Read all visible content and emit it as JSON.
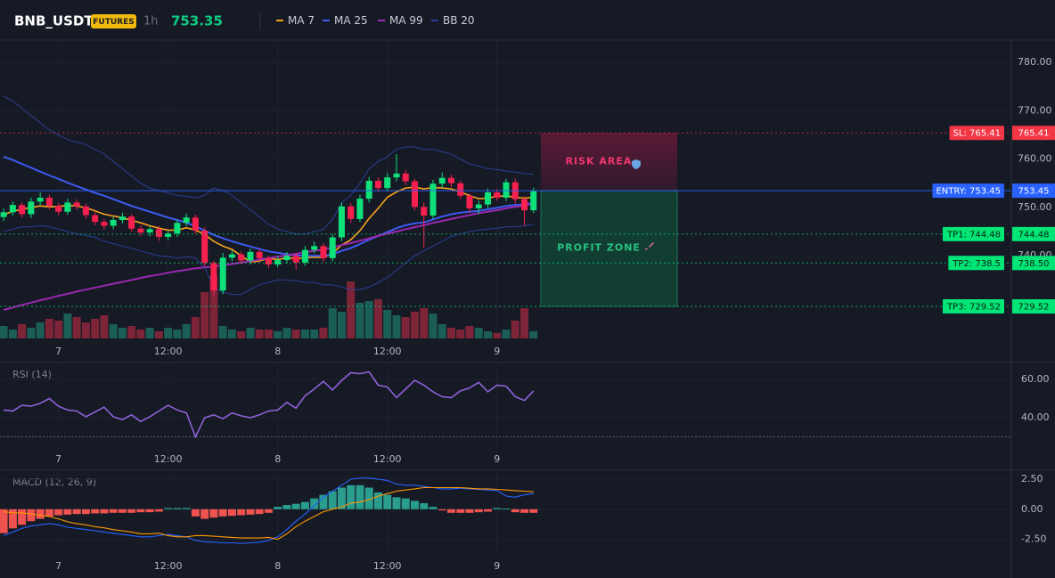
{
  "chart_data": {
    "type": "candlestick",
    "symbol": "BNB_USDT",
    "badge": "FUTURES",
    "interval": "1h",
    "last_price": 753.35,
    "x": [
      0,
      1,
      2,
      3,
      4,
      5,
      6,
      7,
      8,
      9,
      10,
      11,
      12,
      13,
      14,
      15,
      16,
      17,
      18,
      19,
      20,
      21,
      22,
      23,
      24,
      25,
      26,
      27,
      28,
      29,
      30,
      31,
      32,
      33,
      34,
      35,
      36,
      37,
      38,
      39,
      40,
      41,
      42,
      43,
      44,
      45,
      46,
      47,
      48,
      49,
      50,
      51,
      52,
      53,
      54,
      55,
      56,
      57,
      58
    ],
    "xlim": [
      -0.4,
      110.3
    ],
    "xticks": [
      {
        "value": 6,
        "label": "7"
      },
      {
        "value": 18,
        "label": "12:00"
      },
      {
        "value": 30,
        "label": "8"
      },
      {
        "value": 42,
        "label": "12:00"
      },
      {
        "value": 54,
        "label": "9"
      }
    ],
    "open": [
      748.0,
      749.0,
      750.5,
      748.6,
      751.2,
      752.0,
      750.3,
      749.1,
      751.0,
      750.2,
      748.4,
      747.0,
      746.2,
      747.4,
      748.1,
      745.6,
      744.8,
      745.5,
      743.9,
      744.6,
      746.8,
      747.9,
      745.2,
      738.5,
      732.8,
      739.6,
      740.3,
      739.0,
      740.8,
      739.5,
      738.2,
      739.1,
      740.0,
      738.6,
      741.2,
      742.0,
      739.5,
      743.8,
      750.2,
      747.6,
      751.8,
      755.5,
      754.0,
      756.2,
      757.0,
      755.4,
      750.1,
      748.3,
      754.9,
      756.1,
      755.0,
      752.4,
      749.8,
      750.6,
      753.1,
      752.0,
      755.2,
      751.7,
      749.4
    ],
    "high": [
      749.8,
      751.2,
      751.0,
      752.0,
      753.1,
      752.6,
      750.9,
      751.8,
      751.7,
      750.8,
      749.0,
      747.6,
      748.0,
      748.9,
      748.6,
      746.3,
      746.2,
      746.2,
      745.1,
      747.5,
      748.7,
      748.5,
      745.9,
      739.0,
      740.6,
      741.1,
      740.9,
      741.5,
      741.4,
      740.0,
      739.8,
      740.8,
      740.6,
      742.0,
      742.9,
      742.6,
      744.5,
      751.0,
      750.9,
      752.6,
      756.3,
      756.2,
      757.1,
      761.0,
      757.8,
      755.9,
      751.0,
      755.7,
      757.2,
      756.8,
      755.6,
      752.9,
      751.4,
      753.9,
      753.8,
      755.9,
      756.0,
      752.3,
      754.1
    ],
    "low": [
      747.2,
      748.3,
      747.9,
      747.8,
      750.5,
      749.6,
      748.4,
      748.5,
      749.5,
      747.6,
      746.3,
      745.4,
      745.5,
      746.7,
      744.9,
      744.1,
      744.0,
      743.1,
      743.2,
      743.9,
      746.1,
      744.5,
      737.8,
      731.5,
      732.0,
      738.9,
      738.3,
      738.2,
      738.8,
      737.4,
      737.6,
      738.4,
      737.1,
      737.9,
      740.5,
      738.6,
      738.8,
      743.0,
      746.8,
      747.0,
      751.0,
      753.2,
      753.3,
      755.4,
      754.6,
      749.3,
      741.7,
      747.6,
      754.0,
      754.2,
      751.8,
      748.9,
      748.6,
      749.9,
      751.4,
      751.3,
      750.8,
      746.2,
      748.8
    ],
    "close": [
      749.0,
      750.5,
      748.6,
      751.2,
      752.0,
      750.3,
      749.1,
      751.0,
      750.2,
      748.4,
      747.0,
      746.2,
      747.4,
      748.1,
      745.6,
      744.8,
      745.5,
      743.9,
      744.6,
      746.8,
      747.9,
      745.2,
      738.5,
      732.8,
      739.6,
      740.3,
      739.0,
      740.8,
      739.5,
      738.2,
      739.1,
      740.0,
      738.6,
      741.2,
      742.0,
      739.5,
      743.8,
      750.2,
      747.6,
      751.8,
      755.5,
      754.0,
      756.2,
      757.0,
      755.4,
      750.1,
      748.3,
      754.9,
      756.1,
      755.0,
      752.4,
      749.8,
      750.6,
      753.1,
      752.0,
      755.2,
      751.7,
      749.4,
      753.35
    ],
    "volume": [
      14,
      10,
      16,
      12,
      18,
      22,
      20,
      28,
      24,
      18,
      22,
      26,
      16,
      12,
      14,
      10,
      12,
      8,
      12,
      10,
      16,
      24,
      52,
      70,
      14,
      10,
      8,
      12,
      10,
      10,
      8,
      12,
      10,
      10,
      10,
      12,
      34,
      30,
      64,
      40,
      42,
      44,
      32,
      26,
      24,
      30,
      34,
      28,
      16,
      12,
      10,
      14,
      12,
      8,
      6,
      10,
      20,
      34,
      8
    ],
    "volume_ylim": [
      0,
      100
    ],
    "up_color": "#0ee07a",
    "down_color": "#f7204f",
    "volume_up_color": "#1b5e55",
    "volume_down_color": "#7e2438",
    "ylim": [
      722.9,
      784.6
    ],
    "yticks": [
      {
        "value": 780,
        "label": "780.00"
      },
      {
        "value": 770,
        "label": "770.00"
      },
      {
        "value": 760,
        "label": "760.00"
      },
      {
        "value": 750,
        "label": "750.00"
      },
      {
        "value": 740,
        "label": "740.00"
      }
    ],
    "series": [
      {
        "name": "MA 7",
        "color": "#f7a21b",
        "values": [
          748.5,
          749.2,
          749.6,
          750.0,
          750.3,
          750.1,
          750.2,
          750.4,
          750.3,
          749.9,
          749.3,
          748.6,
          748.2,
          747.9,
          747.3,
          746.8,
          746.2,
          745.7,
          745.3,
          745.3,
          745.8,
          745.3,
          744.4,
          743.0,
          742.0,
          741.3,
          740.0,
          738.7,
          738.9,
          739.5,
          739.2,
          739.6,
          739.4,
          739.6,
          739.7,
          739.6,
          740.5,
          742.2,
          743.3,
          745.2,
          747.7,
          749.8,
          752.1,
          753.2,
          754.0,
          754.2,
          753.8,
          754.1,
          754.0,
          753.8,
          753.2,
          752.4,
          751.8,
          751.9,
          752.3,
          752.4,
          752.1,
          751.9,
          752.1
        ]
      },
      {
        "name": "MA 25",
        "color": "#3d5af1",
        "values": [
          760.5,
          759.8,
          759.0,
          758.2,
          757.4,
          756.6,
          755.9,
          755.1,
          754.4,
          753.7,
          753.0,
          752.4,
          751.7,
          751.0,
          750.3,
          749.7,
          749.1,
          748.5,
          747.9,
          747.4,
          746.8,
          746.1,
          745.2,
          744.3,
          743.6,
          743.0,
          742.4,
          741.9,
          741.4,
          740.9,
          740.6,
          740.3,
          740.1,
          740.0,
          740.0,
          740.0,
          740.3,
          741.0,
          741.6,
          742.4,
          743.3,
          744.1,
          744.9,
          745.7,
          746.3,
          746.7,
          746.9,
          747.5,
          748.1,
          748.6,
          748.9,
          749.1,
          749.3,
          749.6,
          749.9,
          750.3,
          750.5,
          750.6,
          751.0
        ]
      },
      {
        "name": "MA 99",
        "color": "#9c27b0",
        "values": [
          728.8,
          729.3,
          729.8,
          730.3,
          730.8,
          731.2,
          731.7,
          732.1,
          732.6,
          733.0,
          733.4,
          733.8,
          734.2,
          734.6,
          735.0,
          735.4,
          735.8,
          736.1,
          736.5,
          736.8,
          737.1,
          737.4,
          737.6,
          737.8,
          738.0,
          738.3,
          738.6,
          738.9,
          739.2,
          739.5,
          739.8,
          740.1,
          740.4,
          740.7,
          741.0,
          741.3,
          741.7,
          742.2,
          742.6,
          743.1,
          743.6,
          744.1,
          744.6,
          745.0,
          745.5,
          745.9,
          746.3,
          746.8,
          747.2,
          747.6,
          748.0,
          748.4,
          748.8,
          749.1,
          749.4,
          749.8,
          750.1,
          750.4,
          750.8
        ]
      },
      {
        "name": "BB 20",
        "color": "#2a3f94",
        "values": [
          773.0,
          772.0,
          770.5,
          769.0,
          767.5,
          766.0,
          765.0,
          764.0,
          763.5,
          763.0,
          762.0,
          761.0,
          759.5,
          758.0,
          756.5,
          755.0,
          754.0,
          753.5,
          753.0,
          752.5,
          752.3,
          752.0,
          752.5,
          754.0,
          753.5,
          752.5,
          751.0,
          749.5,
          748.0,
          746.5,
          745.5,
          745.0,
          744.5,
          744.5,
          745.0,
          745.5,
          747.5,
          751.0,
          752.5,
          755.0,
          758.0,
          759.5,
          760.5,
          762.0,
          762.5,
          762.5,
          762.0,
          762.0,
          761.5,
          761.0,
          760.0,
          759.0,
          758.5,
          758.0,
          757.8,
          757.5,
          757.3,
          757.0,
          756.8
        ],
        "lower": [
          745.0,
          745.5,
          746.0,
          746.0,
          746.2,
          746.0,
          745.5,
          745.0,
          744.5,
          744.2,
          743.8,
          743.0,
          742.5,
          742.0,
          741.5,
          741.0,
          740.5,
          740.0,
          739.8,
          739.5,
          739.8,
          739.5,
          737.5,
          733.5,
          732.5,
          732.0,
          732.0,
          733.0,
          734.0,
          734.5,
          735.0,
          735.0,
          734.8,
          734.5,
          734.5,
          734.0,
          734.0,
          733.5,
          733.0,
          733.0,
          733.5,
          734.5,
          735.5,
          737.0,
          738.5,
          740.0,
          741.0,
          742.0,
          743.0,
          744.0,
          744.5,
          745.0,
          745.3,
          745.5,
          745.7,
          746.0,
          746.0,
          746.2,
          746.5
        ]
      }
    ],
    "levels": {
      "names": [
        "SL: 765.41",
        "ENTRY: 753.45",
        "TP1: 744.48",
        "TP2: 738.5",
        "TP3: 729.52"
      ],
      "values": [
        765.41,
        753.45,
        744.48,
        738.5,
        729.52
      ],
      "value_labels": [
        "765.41",
        "753.45",
        "744.48",
        "738.50",
        "729.52"
      ],
      "colors": [
        "#f23645",
        "#2962ff",
        "#00e676",
        "#00e676",
        "#00e676"
      ]
    },
    "zones": [
      {
        "label": "RISK AREA",
        "color": "#f23672"
      },
      {
        "label": "PROFIT ZONE",
        "color": "#26c281"
      }
    ],
    "rsi": {
      "title": "RSI (14)",
      "color": "#8e62d8",
      "values": [
        44.0,
        43.5,
        46.5,
        46.0,
        47.5,
        50.0,
        46.0,
        44.0,
        43.5,
        40.5,
        43.0,
        45.5,
        40.5,
        39.0,
        41.5,
        38.0,
        40.5,
        43.5,
        46.5,
        44.0,
        42.5,
        30.0,
        40.0,
        41.5,
        39.5,
        42.5,
        41.0,
        40.0,
        41.5,
        43.5,
        44.0,
        48.0,
        45.0,
        51.5,
        55.0,
        59.0,
        54.5,
        59.5,
        63.5,
        63.0,
        64.0,
        57.0,
        56.0,
        50.5,
        55.0,
        59.5,
        57.0,
        53.5,
        51.0,
        50.5,
        54.0,
        55.5,
        58.5,
        53.5,
        57.0,
        56.5,
        51.0,
        49.0,
        54.0
      ],
      "ylim": [
        17.2,
        68.4
      ],
      "yticks": [
        {
          "value": 60,
          "label": "60.00"
        },
        {
          "value": 40,
          "label": "40.00"
        }
      ],
      "oversold": 30
    },
    "macd": {
      "title": "MACD (12, 26, 9)",
      "histogram": [
        -2.0,
        -1.6,
        -1.3,
        -1.0,
        -0.8,
        -0.6,
        -0.5,
        -0.45,
        -0.4,
        -0.4,
        -0.35,
        -0.35,
        -0.3,
        -0.3,
        -0.3,
        -0.25,
        -0.25,
        -0.2,
        0.1,
        0.1,
        0.1,
        -0.6,
        -0.8,
        -0.7,
        -0.6,
        -0.55,
        -0.5,
        -0.45,
        -0.4,
        -0.3,
        0.2,
        0.35,
        0.45,
        0.6,
        0.9,
        1.2,
        1.5,
        1.8,
        2.0,
        2.0,
        1.8,
        1.4,
        1.2,
        1.0,
        0.9,
        0.7,
        0.5,
        0.2,
        -0.1,
        -0.3,
        -0.3,
        -0.3,
        -0.25,
        -0.2,
        0.1,
        0.05,
        -0.25,
        -0.3,
        -0.3
      ],
      "macd": [
        -2.2,
        -1.9,
        -1.6,
        -1.4,
        -1.3,
        -1.2,
        -1.3,
        -1.5,
        -1.6,
        -1.7,
        -1.8,
        -1.9,
        -2.0,
        -2.1,
        -2.2,
        -2.3,
        -2.3,
        -2.2,
        -2.1,
        -2.2,
        -2.3,
        -2.6,
        -2.7,
        -2.75,
        -2.8,
        -2.8,
        -2.85,
        -2.8,
        -2.75,
        -2.6,
        -2.3,
        -1.7,
        -1.0,
        -0.4,
        0.3,
        1.0,
        1.5,
        2.0,
        2.5,
        2.6,
        2.6,
        2.5,
        2.4,
        2.1,
        2.0,
        2.0,
        1.9,
        1.8,
        1.7,
        1.7,
        1.75,
        1.7,
        1.65,
        1.6,
        1.55,
        1.1,
        1.0,
        1.2,
        1.3
      ],
      "signal": [
        -0.2,
        -0.3,
        -0.3,
        -0.4,
        -0.5,
        -0.6,
        -0.8,
        -1.05,
        -1.2,
        -1.3,
        -1.45,
        -1.55,
        -1.7,
        -1.8,
        -1.9,
        -2.05,
        -2.05,
        -2.0,
        -2.2,
        -2.3,
        -2.3,
        -2.2,
        -2.2,
        -2.25,
        -2.3,
        -2.35,
        -2.4,
        -2.4,
        -2.4,
        -2.35,
        -2.5,
        -2.05,
        -1.45,
        -1.0,
        -0.6,
        -0.2,
        0.0,
        0.2,
        0.5,
        0.6,
        0.8,
        1.1,
        1.3,
        1.5,
        1.6,
        1.7,
        1.8,
        1.8,
        1.8,
        1.8,
        1.8,
        1.75,
        1.7,
        1.7,
        1.65,
        1.6,
        1.55,
        1.5,
        1.45
      ],
      "hist_up_color": "#2a9d8f",
      "hist_down_color": "#ef5350",
      "macd_color": "#2962ff",
      "signal_color": "#ff9800",
      "ylim": [
        -3.95,
        3.1
      ],
      "yticks": [
        {
          "value": 2.5,
          "label": "2.50"
        },
        {
          "value": 0,
          "label": "0.00"
        },
        {
          "value": -2.5,
          "label": "-2.50"
        }
      ]
    }
  }
}
